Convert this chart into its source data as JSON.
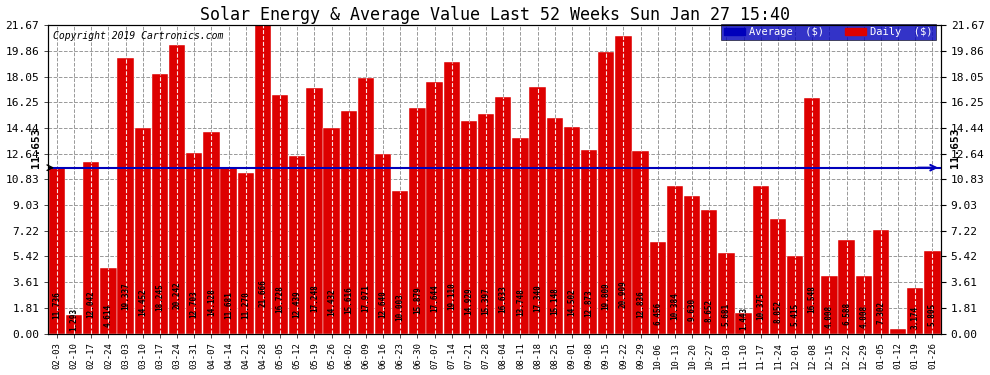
{
  "title": "Solar Energy & Average Value Last 52 Weeks Sun Jan 27 15:40",
  "copyright": "Copyright 2019 Cartronics.com",
  "average_value": 11.653,
  "average_label": "11.653",
  "yticks": [
    0.0,
    1.81,
    3.61,
    5.42,
    7.22,
    9.03,
    10.83,
    12.64,
    14.44,
    16.25,
    18.05,
    19.86,
    21.67
  ],
  "legend_avg_color": "#0000bb",
  "legend_daily_color": "#dd0000",
  "bar_color": "#dd0000",
  "avg_line_color": "#0000bb",
  "categories": [
    "02-03",
    "02-10",
    "02-17",
    "02-24",
    "03-03",
    "03-10",
    "03-17",
    "03-24",
    "03-31",
    "04-07",
    "04-14",
    "04-21",
    "04-28",
    "05-05",
    "05-12",
    "05-19",
    "05-26",
    "06-02",
    "06-09",
    "06-16",
    "06-23",
    "06-30",
    "07-07",
    "07-14",
    "07-21",
    "07-28",
    "08-04",
    "08-11",
    "08-18",
    "08-25",
    "09-01",
    "09-08",
    "09-15",
    "09-22",
    "09-29",
    "10-06",
    "10-13",
    "10-20",
    "10-27",
    "11-03",
    "11-10",
    "11-17",
    "11-24",
    "12-01",
    "12-08",
    "12-15",
    "12-22",
    "12-29",
    "01-05",
    "01-12",
    "01-19",
    "01-26"
  ],
  "values": [
    11.736,
    1.293,
    12.042,
    4.614,
    19.337,
    14.452,
    18.245,
    20.242,
    12.703,
    14.128,
    11.681,
    11.27,
    21.666,
    16.728,
    12.439,
    17.248,
    14.432,
    15.616,
    17.971,
    12.64,
    10.003,
    15.879,
    17.644,
    19.11,
    14.929,
    15.397,
    16.633,
    13.748,
    17.34,
    15.148,
    14.502,
    12.873,
    19.809,
    20.909,
    12.836,
    6.456,
    10.384,
    9.63,
    8.652,
    5.681,
    1.443,
    10.375,
    8.052,
    5.415,
    16.548,
    4.008,
    6.588,
    4.008,
    7.302,
    0.332,
    3.174,
    5.805
  ],
  "background_color": "#ffffff",
  "grid_color": "#999999",
  "title_fontsize": 12,
  "bar_edge_color": "#ffffff",
  "figwidth": 9.9,
  "figheight": 3.75,
  "dpi": 100
}
